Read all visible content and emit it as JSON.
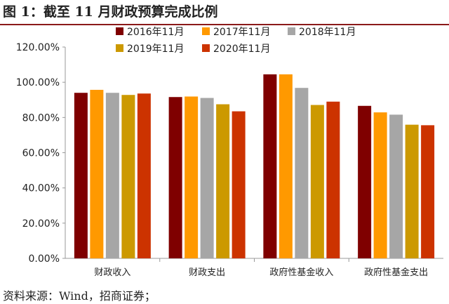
{
  "title": "图 1：截至 11 月财政预算完成比例",
  "source": "资料来源：Wind，招商证券；",
  "chart_data": {
    "type": "bar",
    "title": "图 1：截至 11 月财政预算完成比例",
    "categories": [
      "财政收入",
      "财政支出",
      "政府性基金收入",
      "政府性基金支出"
    ],
    "series": [
      {
        "name": "2016年11月",
        "color": "#7f0000",
        "values": [
          94.0,
          91.6,
          104.5,
          86.6
        ]
      },
      {
        "name": "2017年11月",
        "color": "#ff9900",
        "values": [
          95.7,
          91.9,
          104.5,
          82.9
        ]
      },
      {
        "name": "2018年11月",
        "color": "#a6a6a6",
        "values": [
          94.0,
          91.1,
          96.8,
          81.6
        ]
      },
      {
        "name": "2019年11月",
        "color": "#cc9900",
        "values": [
          92.8,
          87.5,
          87.1,
          75.9
        ]
      },
      {
        "name": "2020年11月",
        "color": "#cc3300",
        "values": [
          93.6,
          83.5,
          89.0,
          75.6
        ]
      }
    ],
    "yticks": [
      "0.00%",
      "20.00%",
      "40.00%",
      "60.00%",
      "80.00%",
      "100.00%",
      "120.00%"
    ],
    "ylim": [
      0,
      120
    ],
    "legend": "top",
    "grid": false
  }
}
